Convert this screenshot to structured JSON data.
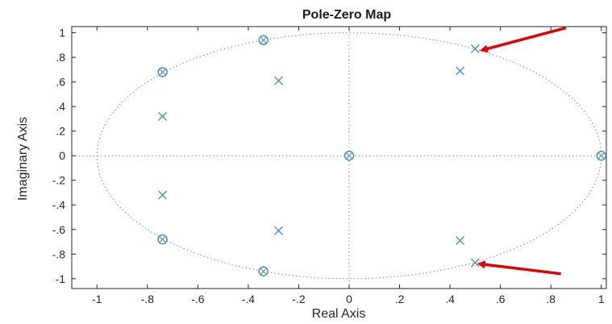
{
  "chart_data": {
    "type": "scatter",
    "title": "Pole-Zero Map",
    "xlabel": "Real Axis",
    "ylabel": "Imaginary Axis",
    "xlim": [
      -1.1,
      1.02
    ],
    "ylim": [
      -1.08,
      1.05
    ],
    "xticks": [
      -1,
      -0.8,
      -0.6,
      -0.4,
      -0.2,
      0,
      0.2,
      0.4,
      0.6,
      0.8,
      1
    ],
    "yticks": [
      -1,
      -0.8,
      -0.6,
      -0.4,
      -0.2,
      0,
      0.2,
      0.4,
      0.6,
      0.8,
      1
    ],
    "grid": false,
    "unit_circle": true,
    "marker_color": "#4a90c8",
    "arrow_color": "#e00000",
    "series": [
      {
        "marker": "zero",
        "points": [
          {
            "x": -0.34,
            "y": 0.94
          },
          {
            "x": -0.74,
            "y": 0.68
          },
          {
            "x": 0,
            "y": 0
          },
          {
            "x": 1,
            "y": 0
          },
          {
            "x": -0.74,
            "y": -0.68
          },
          {
            "x": -0.34,
            "y": -0.94
          }
        ]
      },
      {
        "marker": "pole",
        "points": [
          {
            "x": 0.5,
            "y": 0.87
          },
          {
            "x": 0.44,
            "y": 0.69
          },
          {
            "x": -0.28,
            "y": 0.61
          },
          {
            "x": -0.74,
            "y": 0.32
          },
          {
            "x": -0.74,
            "y": -0.32
          },
          {
            "x": -0.28,
            "y": -0.61
          },
          {
            "x": 0.44,
            "y": -0.69
          },
          {
            "x": 0.5,
            "y": -0.87
          }
        ]
      }
    ],
    "annotations": [
      {
        "type": "arrow",
        "from": {
          "x": 0.86,
          "y": 1.04
        },
        "to": {
          "x": 0.53,
          "y": 0.86
        }
      },
      {
        "type": "arrow",
        "from": {
          "x": 0.84,
          "y": -0.96
        },
        "to": {
          "x": 0.52,
          "y": -0.88
        }
      }
    ]
  }
}
